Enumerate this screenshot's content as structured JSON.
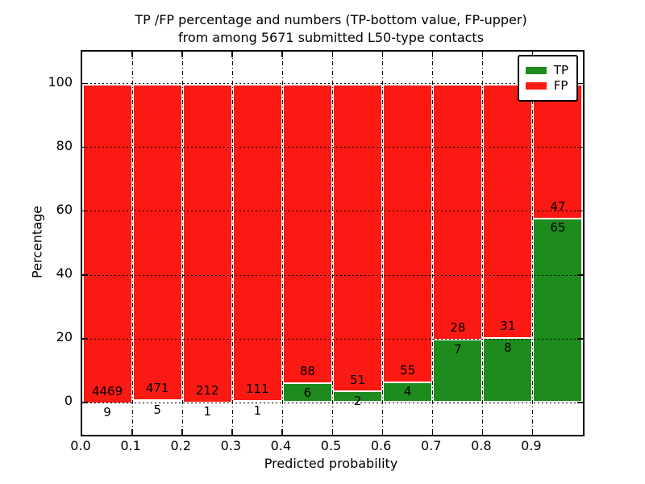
{
  "title": {
    "line1": "TP /FP percentage and numbers (TP-bottom value, FP-upper)",
    "line2": "from among 5671 submitted L50-type contacts"
  },
  "axes": {
    "xlabel": "Predicted probability",
    "ylabel": "Percentage"
  },
  "legend": {
    "items": [
      {
        "label": "TP",
        "color": "#1e8b1e"
      },
      {
        "label": "FP",
        "color": "#fa1a13"
      }
    ]
  },
  "colors": {
    "tp": "#1e8b1e",
    "fp": "#fa1a13",
    "bar_edge": "#ffffff",
    "grid": "#000000",
    "frame": "#000000"
  },
  "chart_data": {
    "type": "bar",
    "subtype": "stacked-percentage",
    "title": "TP /FP percentage and numbers (TP-bottom value, FP-upper) from among 5671 submitted L50-type contacts",
    "xlabel": "Predicted probability",
    "ylabel": "Percentage",
    "xlim": [
      0.0,
      1.0
    ],
    "ylim": [
      -10,
      110
    ],
    "xticks": [
      0.0,
      0.1,
      0.2,
      0.3,
      0.4,
      0.5,
      0.6,
      0.7,
      0.8,
      0.9
    ],
    "xtick_labels": [
      "0.0",
      "0.1",
      "0.2",
      "0.3",
      "0.4",
      "0.5",
      "0.6",
      "0.7",
      "0.8",
      "0.9"
    ],
    "yticks": [
      0,
      20,
      40,
      60,
      80,
      100
    ],
    "grid": {
      "horizontal": "dotted",
      "vertical": "dash-dot"
    },
    "legend_position": "upper right",
    "total_contacts": 5671,
    "series": [
      {
        "name": "TP",
        "color": "#1e8b1e",
        "position": "bottom"
      },
      {
        "name": "FP",
        "color": "#fa1a13",
        "position": "top"
      }
    ],
    "bins": [
      {
        "range": [
          0.0,
          0.1
        ],
        "tp": 9,
        "fp": 4469
      },
      {
        "range": [
          0.1,
          0.2
        ],
        "tp": 5,
        "fp": 471
      },
      {
        "range": [
          0.2,
          0.3
        ],
        "tp": 1,
        "fp": 212
      },
      {
        "range": [
          0.3,
          0.4
        ],
        "tp": 1,
        "fp": 111
      },
      {
        "range": [
          0.4,
          0.5
        ],
        "tp": 6,
        "fp": 88
      },
      {
        "range": [
          0.5,
          0.6
        ],
        "tp": 2,
        "fp": 51
      },
      {
        "range": [
          0.6,
          0.7
        ],
        "tp": 4,
        "fp": 55
      },
      {
        "range": [
          0.7,
          0.8
        ],
        "tp": 7,
        "fp": 28
      },
      {
        "range": [
          0.8,
          0.9
        ],
        "tp": 8,
        "fp": 31
      },
      {
        "range": [
          0.9,
          1.0
        ],
        "tp": 65,
        "fp": 47
      }
    ]
  }
}
